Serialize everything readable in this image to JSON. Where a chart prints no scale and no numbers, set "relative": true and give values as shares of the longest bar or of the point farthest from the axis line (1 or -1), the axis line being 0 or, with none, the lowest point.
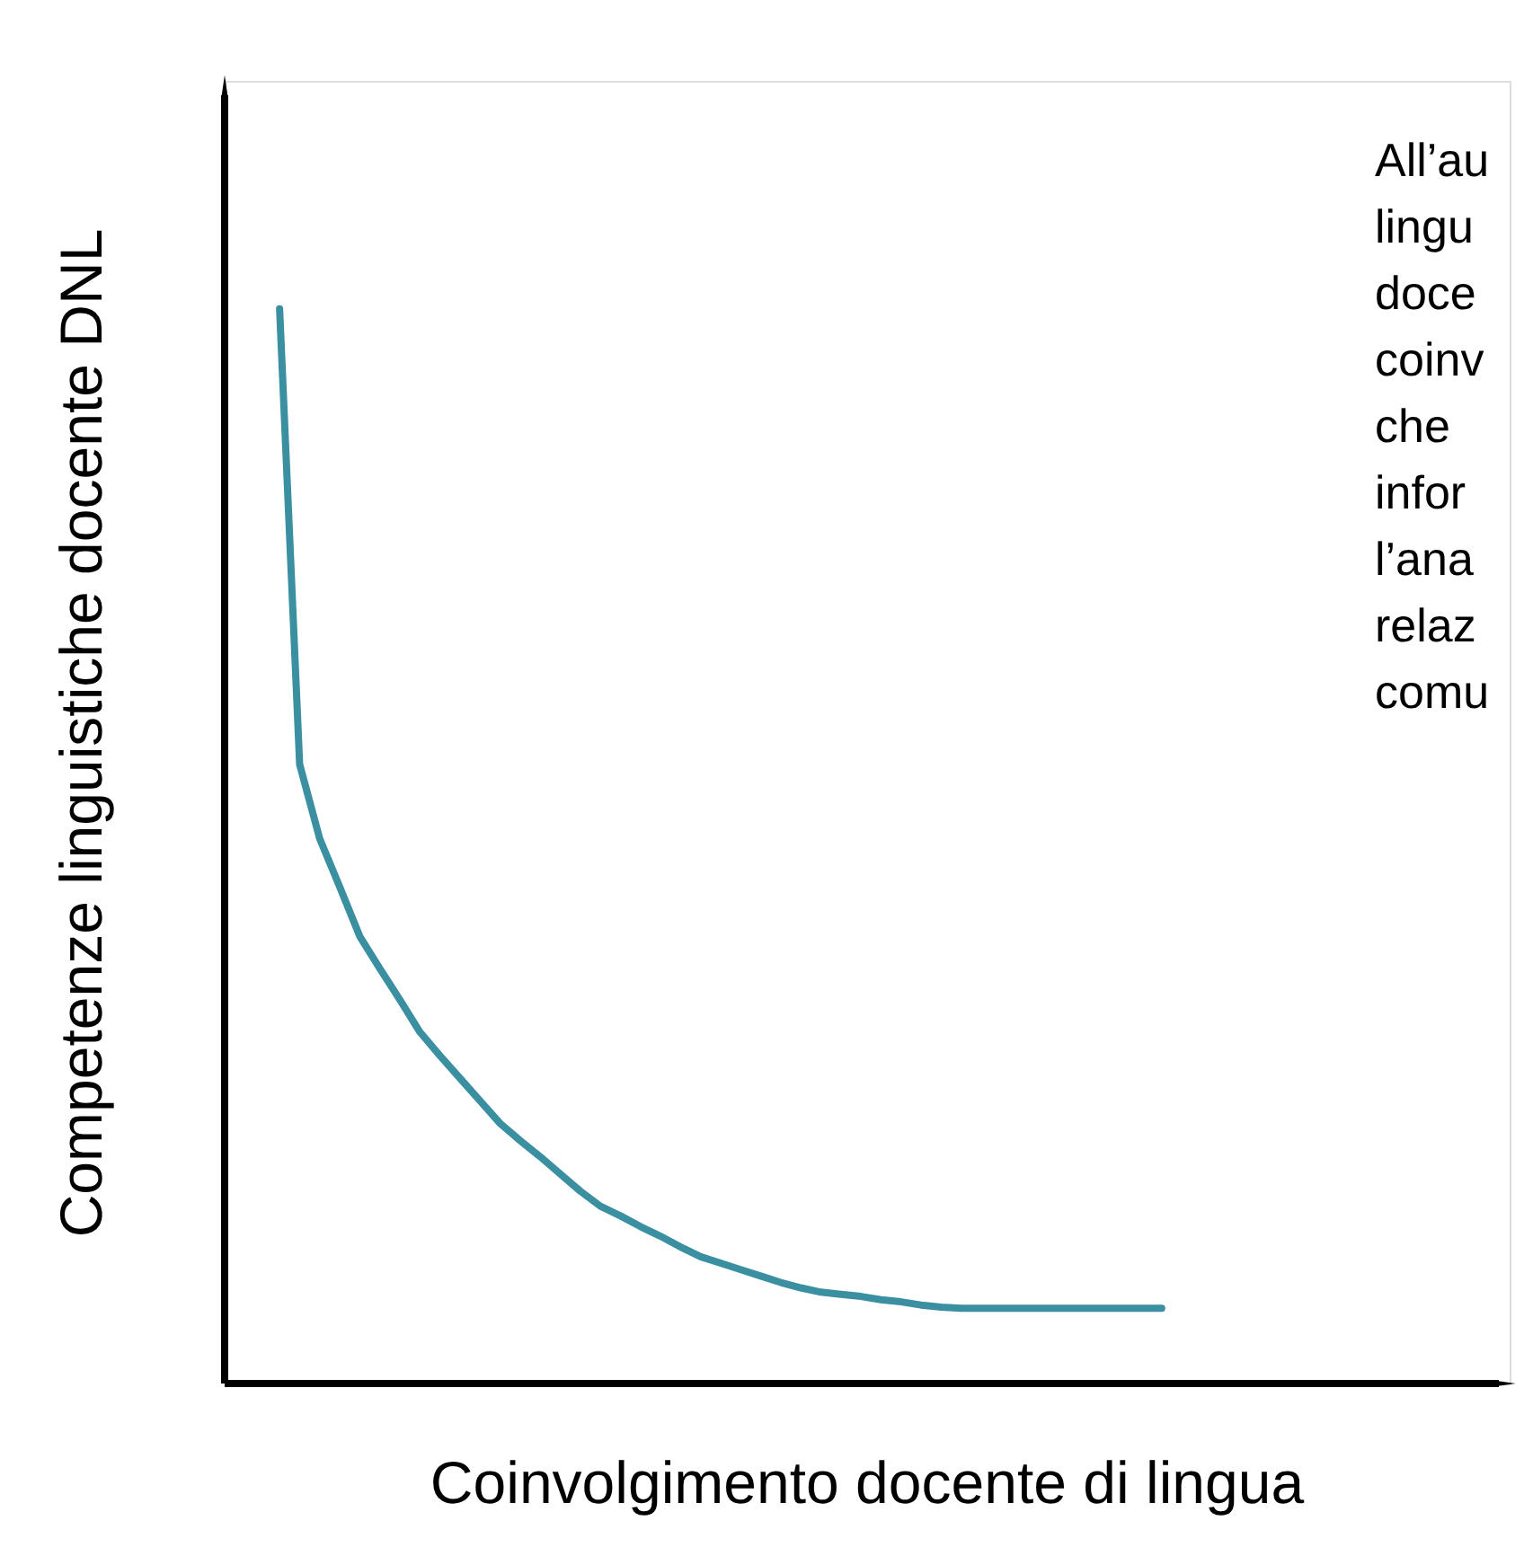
{
  "chart_data": {
    "type": "line",
    "relative": true,
    "xlabel": "Coinvolgimento docente di lingua",
    "ylabel": "Competenze linguistiche docente DNL",
    "annotations": [
      "All’au",
      "lingu",
      "doce",
      "coinv",
      "che",
      "infor",
      "l’ana",
      "relaz",
      "comu"
    ],
    "categories": [
      null,
      null,
      null,
      null,
      null,
      null,
      null,
      null,
      null,
      null,
      null,
      null,
      null,
      null,
      null,
      null,
      null,
      null,
      null,
      null,
      null,
      null,
      null,
      null,
      null,
      null,
      null,
      null,
      null,
      null,
      null,
      null,
      null,
      null,
      null,
      null,
      null,
      null,
      null,
      null,
      null,
      null,
      null,
      null,
      null
    ],
    "series": [
      {
        "color": "#3a8fa0",
        "values": [
          1.0,
          0.576,
          0.507,
          0.462,
          0.416,
          0.386,
          0.357,
          0.327,
          0.305,
          0.284,
          0.263,
          0.242,
          0.226,
          0.211,
          0.195,
          0.179,
          0.165,
          0.156,
          0.146,
          0.137,
          0.127,
          0.118,
          0.112,
          0.106,
          0.1,
          0.094,
          0.089,
          0.085,
          0.083,
          0.081,
          0.078,
          0.076,
          0.073,
          0.071,
          0.07,
          0.07,
          0.07,
          0.07,
          0.07,
          0.07,
          0.07,
          0.07,
          0.07,
          0.07,
          0.07
        ]
      }
    ],
    "grid": false,
    "marker": "none",
    "line_style": "solid"
  }
}
